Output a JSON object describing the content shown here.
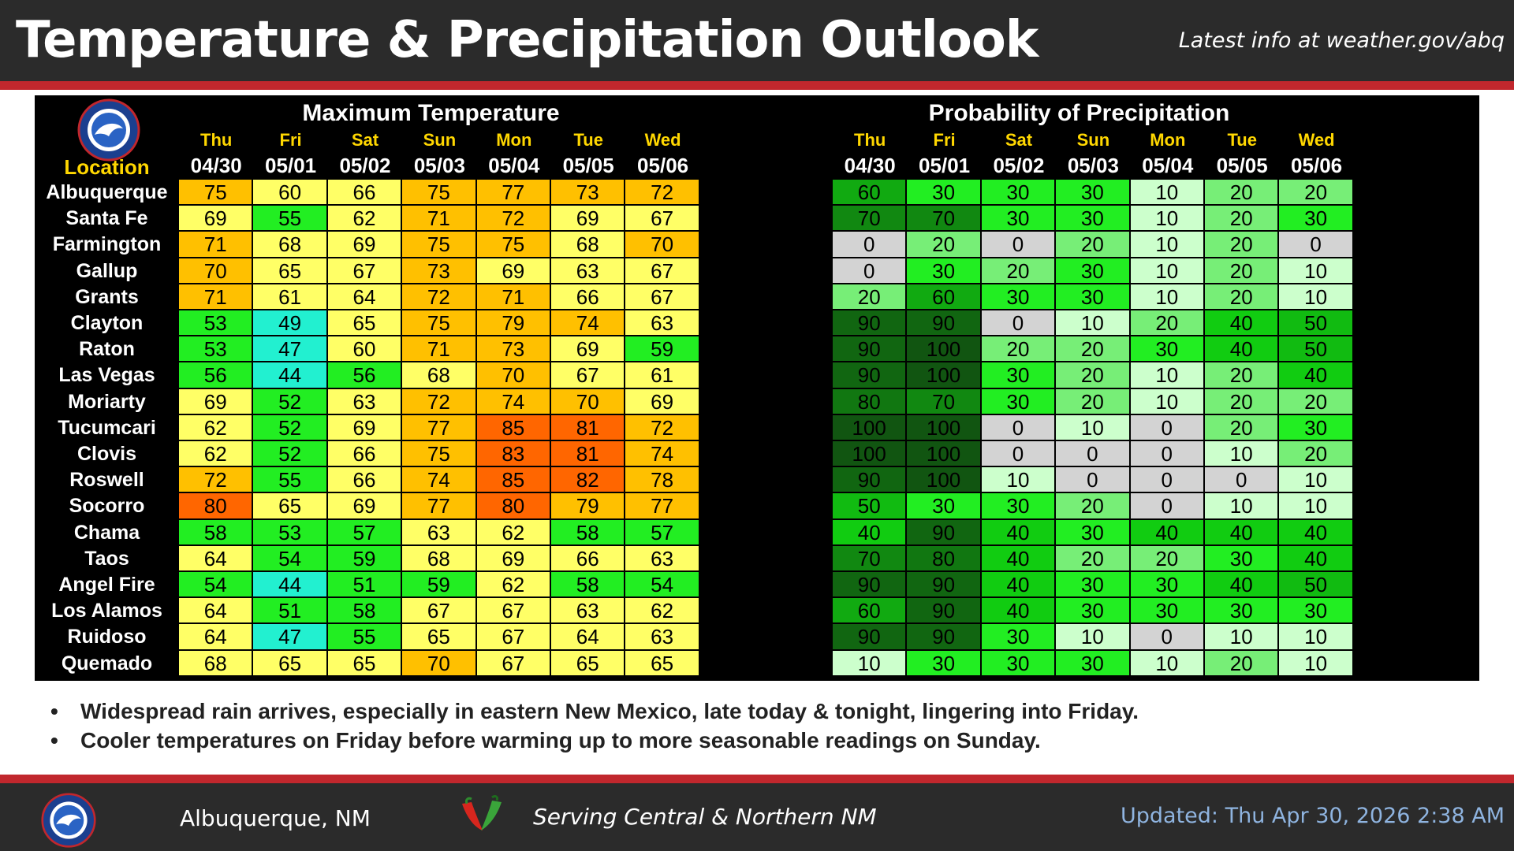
{
  "header": {
    "title": "Temperature & Precipitation Outlook",
    "link": "Latest info at weather.gov/abq"
  },
  "table": {
    "location_label": "Location",
    "temp_title": "Maximum Temperature",
    "pop_title": "Probability of Precipitation",
    "days": [
      {
        "day": "Thu",
        "date": "04/30"
      },
      {
        "day": "Fri",
        "date": "05/01"
      },
      {
        "day": "Sat",
        "date": "05/02"
      },
      {
        "day": "Sun",
        "date": "05/03"
      },
      {
        "day": "Mon",
        "date": "05/04"
      },
      {
        "day": "Tue",
        "date": "05/05"
      },
      {
        "day": "Wed",
        "date": "05/06"
      }
    ],
    "rows": [
      {
        "location": "Albuquerque",
        "temps": [
          75,
          60,
          66,
          75,
          77,
          73,
          72
        ],
        "pops": [
          60,
          30,
          30,
          30,
          10,
          20,
          20
        ]
      },
      {
        "location": "Santa Fe",
        "temps": [
          69,
          55,
          62,
          71,
          72,
          69,
          67
        ],
        "pops": [
          70,
          70,
          30,
          30,
          10,
          20,
          30
        ]
      },
      {
        "location": "Farmington",
        "temps": [
          71,
          68,
          69,
          75,
          75,
          68,
          70
        ],
        "pops": [
          0,
          20,
          0,
          20,
          10,
          20,
          0
        ]
      },
      {
        "location": "Gallup",
        "temps": [
          70,
          65,
          67,
          73,
          69,
          63,
          67
        ],
        "pops": [
          0,
          30,
          20,
          30,
          10,
          20,
          10
        ]
      },
      {
        "location": "Grants",
        "temps": [
          71,
          61,
          64,
          72,
          71,
          66,
          67
        ],
        "pops": [
          20,
          60,
          30,
          30,
          10,
          20,
          10
        ]
      },
      {
        "location": "Clayton",
        "temps": [
          53,
          49,
          65,
          75,
          79,
          74,
          63
        ],
        "pops": [
          90,
          90,
          0,
          10,
          20,
          40,
          50
        ]
      },
      {
        "location": "Raton",
        "temps": [
          53,
          47,
          60,
          71,
          73,
          69,
          59
        ],
        "pops": [
          90,
          100,
          20,
          20,
          30,
          40,
          50
        ]
      },
      {
        "location": "Las Vegas",
        "temps": [
          56,
          44,
          56,
          68,
          70,
          67,
          61
        ],
        "pops": [
          90,
          100,
          30,
          20,
          10,
          20,
          40
        ]
      },
      {
        "location": "Moriarty",
        "temps": [
          69,
          52,
          63,
          72,
          74,
          70,
          69
        ],
        "pops": [
          80,
          70,
          30,
          20,
          10,
          20,
          20
        ]
      },
      {
        "location": "Tucumcari",
        "temps": [
          62,
          52,
          69,
          77,
          85,
          81,
          72
        ],
        "pops": [
          100,
          100,
          0,
          10,
          0,
          20,
          30
        ]
      },
      {
        "location": "Clovis",
        "temps": [
          62,
          52,
          66,
          75,
          83,
          81,
          74
        ],
        "pops": [
          100,
          100,
          0,
          0,
          0,
          10,
          20
        ]
      },
      {
        "location": "Roswell",
        "temps": [
          72,
          55,
          66,
          74,
          85,
          82,
          78
        ],
        "pops": [
          90,
          100,
          10,
          0,
          0,
          0,
          10
        ]
      },
      {
        "location": "Socorro",
        "temps": [
          80,
          65,
          69,
          77,
          80,
          79,
          77
        ],
        "pops": [
          50,
          30,
          30,
          20,
          0,
          10,
          10
        ]
      },
      {
        "location": "Chama",
        "temps": [
          58,
          53,
          57,
          63,
          62,
          58,
          57
        ],
        "pops": [
          40,
          90,
          40,
          30,
          40,
          40,
          40
        ]
      },
      {
        "location": "Taos",
        "temps": [
          64,
          54,
          59,
          68,
          69,
          66,
          63
        ],
        "pops": [
          70,
          80,
          40,
          20,
          20,
          30,
          40
        ]
      },
      {
        "location": "Angel Fire",
        "temps": [
          54,
          44,
          51,
          59,
          62,
          58,
          54
        ],
        "pops": [
          90,
          90,
          40,
          30,
          30,
          40,
          50
        ]
      },
      {
        "location": "Los Alamos",
        "temps": [
          64,
          51,
          58,
          67,
          67,
          63,
          62
        ],
        "pops": [
          60,
          90,
          40,
          30,
          30,
          30,
          30
        ]
      },
      {
        "location": "Ruidoso",
        "temps": [
          64,
          47,
          55,
          65,
          67,
          64,
          63
        ],
        "pops": [
          90,
          90,
          30,
          10,
          0,
          10,
          10
        ]
      },
      {
        "location": "Quemado",
        "temps": [
          68,
          65,
          65,
          70,
          67,
          65,
          65
        ],
        "pops": [
          10,
          30,
          30,
          30,
          10,
          20,
          10
        ]
      }
    ]
  },
  "colors": {
    "temp_scale": {
      "44-49": "#22f0d0",
      "50-59": "#22ee22",
      "60-69": "#ffff66",
      "70-79": "#ffc000",
      "80-89": "#ff6600"
    },
    "pop_scale": {
      "0": "#d3d3d3",
      "10": "#ccffcc",
      "20": "#77ee77",
      "30": "#22ee22",
      "40": "#11cc11",
      "50": "#11bb11",
      "60": "#11aa11",
      "70": "#118811",
      "80": "#117711",
      "90": "#116611",
      "100": "#115511"
    }
  },
  "bullets": {
    "marker": "•",
    "items": [
      "Widespread rain arrives, especially in eastern New Mexico, late today & tonight, lingering into Friday.",
      "Cooler temperatures on Friday before warming up to more seasonable readings on Sunday."
    ]
  },
  "footer": {
    "city": "Albuquerque, NM",
    "serving": "Serving Central & Northern NM",
    "updated": "Updated: Thu Apr 30, 2026 2:38 AM"
  }
}
